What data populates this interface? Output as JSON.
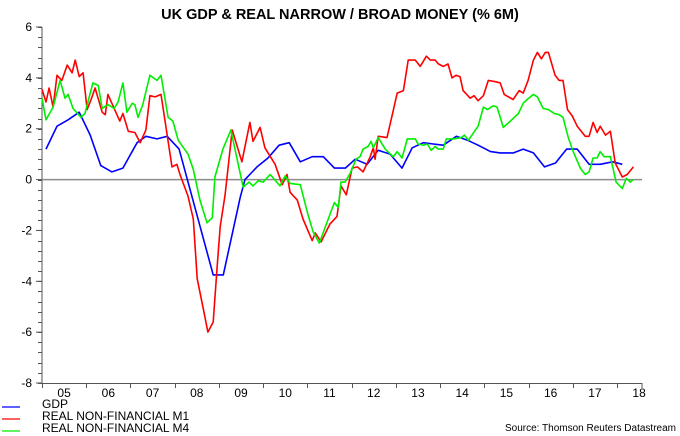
{
  "chart_data": {
    "type": "line",
    "title": "UK GDP & REAL NARROW / BROAD MONEY (% 6M)",
    "xlabel": "",
    "ylabel": "",
    "xlim": [
      2005,
      2018.55
    ],
    "ylim": [
      -8,
      6
    ],
    "y_ticks": [
      6,
      4,
      2,
      0,
      -2,
      -4,
      -6,
      -8
    ],
    "x_tick_labels": [
      "05",
      "06",
      "07",
      "08",
      "09",
      "10",
      "11",
      "12",
      "13",
      "14",
      "15",
      "16",
      "17",
      "18"
    ],
    "zero_line": true,
    "grid": false,
    "legend_position": "bottom-left",
    "source": "Source: Thomson Reuters Datastream",
    "series": [
      {
        "name": "GDP",
        "color": "#0000ff",
        "points": [
          [
            2005.09,
            1.2
          ],
          [
            2005.34,
            2.1
          ],
          [
            2005.59,
            2.35
          ],
          [
            2005.84,
            2.65
          ],
          [
            2006.09,
            1.75
          ],
          [
            2006.33,
            0.55
          ],
          [
            2006.58,
            0.3
          ],
          [
            2006.83,
            0.45
          ],
          [
            2007.15,
            1.45
          ],
          [
            2007.35,
            1.7
          ],
          [
            2007.6,
            1.6
          ],
          [
            2007.83,
            1.7
          ],
          [
            2008.1,
            1.2
          ],
          [
            2008.87,
            -3.75
          ],
          [
            2009.1,
            -3.75
          ],
          [
            2009.48,
            -0.7
          ],
          [
            2009.59,
            0
          ],
          [
            2009.86,
            0.5
          ],
          [
            2010.11,
            0.85
          ],
          [
            2010.36,
            1.35
          ],
          [
            2010.59,
            1.45
          ],
          [
            2010.84,
            0.7
          ],
          [
            2011.11,
            0.9
          ],
          [
            2011.36,
            0.9
          ],
          [
            2011.61,
            0.45
          ],
          [
            2011.86,
            0.45
          ],
          [
            2012.08,
            0.8
          ],
          [
            2012.35,
            0.6
          ],
          [
            2012.6,
            1.15
          ],
          [
            2012.87,
            1.0
          ],
          [
            2013.14,
            0.45
          ],
          [
            2013.37,
            1.25
          ],
          [
            2013.62,
            1.45
          ],
          [
            2013.85,
            1.4
          ],
          [
            2014.07,
            1.35
          ],
          [
            2014.37,
            1.7
          ],
          [
            2014.62,
            1.55
          ],
          [
            2014.86,
            1.35
          ],
          [
            2015.14,
            1.1
          ],
          [
            2015.36,
            1.05
          ],
          [
            2015.66,
            1.05
          ],
          [
            2015.88,
            1.2
          ],
          [
            2016.11,
            1.05
          ],
          [
            2016.36,
            0.5
          ],
          [
            2016.61,
            0.65
          ],
          [
            2016.86,
            1.2
          ],
          [
            2017.1,
            1.2
          ],
          [
            2017.37,
            0.6
          ],
          [
            2017.62,
            0.6
          ],
          [
            2017.9,
            0.7
          ],
          [
            2018.12,
            0.6
          ]
        ]
      },
      {
        "name": "REAL NON-FINANCIAL M1",
        "color": "#ff0000",
        "points": [
          [
            2005.0,
            3.55
          ],
          [
            2005.09,
            3.05
          ],
          [
            2005.16,
            3.6
          ],
          [
            2005.25,
            2.85
          ],
          [
            2005.34,
            4.1
          ],
          [
            2005.45,
            3.9
          ],
          [
            2005.57,
            4.5
          ],
          [
            2005.68,
            4.2
          ],
          [
            2005.75,
            4.7
          ],
          [
            2005.84,
            4.05
          ],
          [
            2005.93,
            4.2
          ],
          [
            2006.02,
            2.75
          ],
          [
            2006.11,
            3.15
          ],
          [
            2006.2,
            3.6
          ],
          [
            2006.36,
            2.65
          ],
          [
            2006.43,
            2.55
          ],
          [
            2006.49,
            3.35
          ],
          [
            2006.76,
            2.3
          ],
          [
            2006.83,
            2.6
          ],
          [
            2006.95,
            1.9
          ],
          [
            2007.1,
            1.85
          ],
          [
            2007.22,
            1.45
          ],
          [
            2007.35,
            1.95
          ],
          [
            2007.44,
            3.3
          ],
          [
            2007.56,
            3.25
          ],
          [
            2007.69,
            3.35
          ],
          [
            2007.94,
            0.5
          ],
          [
            2008.05,
            0.6
          ],
          [
            2008.12,
            0.2
          ],
          [
            2008.3,
            -0.65
          ],
          [
            2008.42,
            -1.55
          ],
          [
            2008.51,
            -3.9
          ],
          [
            2008.66,
            -5.2
          ],
          [
            2008.75,
            -6.0
          ],
          [
            2008.87,
            -5.6
          ],
          [
            2008.96,
            -3.4
          ],
          [
            2009.03,
            -1.85
          ],
          [
            2009.14,
            -0.6
          ],
          [
            2009.3,
            1.95
          ],
          [
            2009.52,
            0.7
          ],
          [
            2009.7,
            2.25
          ],
          [
            2009.77,
            1.5
          ],
          [
            2009.93,
            2.05
          ],
          [
            2010.04,
            1.25
          ],
          [
            2010.27,
            0.6
          ],
          [
            2010.43,
            -0.2
          ],
          [
            2010.54,
            0.2
          ],
          [
            2010.61,
            -0.5
          ],
          [
            2010.77,
            -0.8
          ],
          [
            2010.9,
            -1.55
          ],
          [
            2011.11,
            -2.4
          ],
          [
            2011.18,
            -2.1
          ],
          [
            2011.31,
            -2.45
          ],
          [
            2011.51,
            -1.75
          ],
          [
            2011.67,
            -1.45
          ],
          [
            2011.76,
            -0.25
          ],
          [
            2011.88,
            -0.6
          ],
          [
            2012.01,
            0.45
          ],
          [
            2012.13,
            0.5
          ],
          [
            2012.26,
            0.3
          ],
          [
            2012.42,
            0.9
          ],
          [
            2012.49,
            1.25
          ],
          [
            2012.53,
            0.8
          ],
          [
            2012.6,
            1.7
          ],
          [
            2012.8,
            1.65
          ],
          [
            2012.92,
            2.55
          ],
          [
            2013.03,
            3.4
          ],
          [
            2013.17,
            3.5
          ],
          [
            2013.28,
            4.7
          ],
          [
            2013.44,
            4.7
          ],
          [
            2013.55,
            4.45
          ],
          [
            2013.69,
            4.85
          ],
          [
            2013.78,
            4.7
          ],
          [
            2013.89,
            4.7
          ],
          [
            2013.96,
            4.55
          ],
          [
            2014.07,
            4.45
          ],
          [
            2014.18,
            4.55
          ],
          [
            2014.27,
            4.0
          ],
          [
            2014.36,
            4.1
          ],
          [
            2014.45,
            4.05
          ],
          [
            2014.52,
            3.5
          ],
          [
            2014.68,
            3.2
          ],
          [
            2014.77,
            3.3
          ],
          [
            2014.86,
            3.1
          ],
          [
            2014.98,
            3.3
          ],
          [
            2015.09,
            3.9
          ],
          [
            2015.25,
            3.85
          ],
          [
            2015.36,
            3.8
          ],
          [
            2015.45,
            3.35
          ],
          [
            2015.65,
            3.15
          ],
          [
            2015.79,
            3.5
          ],
          [
            2015.88,
            3.4
          ],
          [
            2015.99,
            3.9
          ],
          [
            2016.11,
            4.7
          ],
          [
            2016.2,
            5.0
          ],
          [
            2016.29,
            4.75
          ],
          [
            2016.38,
            5.0
          ],
          [
            2016.45,
            5.0
          ],
          [
            2016.6,
            4.1
          ],
          [
            2016.69,
            3.9
          ],
          [
            2016.78,
            3.9
          ],
          [
            2016.88,
            2.75
          ],
          [
            2016.99,
            2.5
          ],
          [
            2017.1,
            2.1
          ],
          [
            2017.28,
            1.7
          ],
          [
            2017.37,
            1.7
          ],
          [
            2017.46,
            2.25
          ],
          [
            2017.55,
            1.85
          ],
          [
            2017.62,
            2.1
          ],
          [
            2017.74,
            1.75
          ],
          [
            2017.85,
            1.9
          ],
          [
            2017.96,
            0.65
          ],
          [
            2018.12,
            0.1
          ],
          [
            2018.23,
            0.2
          ],
          [
            2018.37,
            0.5
          ]
        ]
      },
      {
        "name": "REAL NON-FINANCIAL M4",
        "color": "#00ee00",
        "points": [
          [
            2005.0,
            3.2
          ],
          [
            2005.09,
            2.35
          ],
          [
            2005.25,
            2.85
          ],
          [
            2005.41,
            3.9
          ],
          [
            2005.52,
            3.2
          ],
          [
            2005.59,
            3.35
          ],
          [
            2005.7,
            2.8
          ],
          [
            2005.88,
            2.45
          ],
          [
            2005.97,
            2.6
          ],
          [
            2006.15,
            3.8
          ],
          [
            2006.27,
            3.7
          ],
          [
            2006.36,
            2.8
          ],
          [
            2006.49,
            2.95
          ],
          [
            2006.63,
            2.8
          ],
          [
            2006.72,
            3.05
          ],
          [
            2006.83,
            3.8
          ],
          [
            2006.92,
            2.65
          ],
          [
            2007.04,
            3.0
          ],
          [
            2007.1,
            2.95
          ],
          [
            2007.17,
            2.45
          ],
          [
            2007.28,
            2.95
          ],
          [
            2007.44,
            4.1
          ],
          [
            2007.6,
            3.9
          ],
          [
            2007.69,
            4.1
          ],
          [
            2007.85,
            2.45
          ],
          [
            2007.96,
            2.3
          ],
          [
            2008.08,
            1.55
          ],
          [
            2008.3,
            1.0
          ],
          [
            2008.42,
            0.4
          ],
          [
            2008.57,
            -0.8
          ],
          [
            2008.73,
            -1.7
          ],
          [
            2008.85,
            -1.5
          ],
          [
            2008.91,
            0.1
          ],
          [
            2009.09,
            1.2
          ],
          [
            2009.27,
            1.95
          ],
          [
            2009.41,
            0.8
          ],
          [
            2009.55,
            -0.3
          ],
          [
            2009.68,
            -0.1
          ],
          [
            2009.77,
            -0.25
          ],
          [
            2009.89,
            -0.05
          ],
          [
            2010.0,
            -0.1
          ],
          [
            2010.16,
            0.2
          ],
          [
            2010.38,
            -0.25
          ],
          [
            2010.5,
            0.15
          ],
          [
            2010.61,
            -0.15
          ],
          [
            2010.84,
            -0.2
          ],
          [
            2011.0,
            -1.3
          ],
          [
            2011.13,
            -2.05
          ],
          [
            2011.27,
            -2.5
          ],
          [
            2011.45,
            -1.65
          ],
          [
            2011.61,
            -0.9
          ],
          [
            2011.7,
            -1.1
          ],
          [
            2011.76,
            -0.1
          ],
          [
            2011.85,
            -0.1
          ],
          [
            2011.97,
            0.25
          ],
          [
            2012.1,
            0.8
          ],
          [
            2012.19,
            0.9
          ],
          [
            2012.26,
            1.2
          ],
          [
            2012.37,
            1.3
          ],
          [
            2012.44,
            1.5
          ],
          [
            2012.49,
            1.25
          ],
          [
            2012.6,
            1.65
          ],
          [
            2012.76,
            1.2
          ],
          [
            2012.94,
            0.9
          ],
          [
            2013.03,
            1.1
          ],
          [
            2013.14,
            0.85
          ],
          [
            2013.26,
            1.6
          ],
          [
            2013.44,
            1.6
          ],
          [
            2013.5,
            1.4
          ],
          [
            2013.62,
            1.35
          ],
          [
            2013.71,
            1.4
          ],
          [
            2013.8,
            1.15
          ],
          [
            2013.89,
            1.3
          ],
          [
            2013.96,
            1.2
          ],
          [
            2014.07,
            1.2
          ],
          [
            2014.14,
            1.6
          ],
          [
            2014.3,
            1.6
          ],
          [
            2014.48,
            1.65
          ],
          [
            2014.55,
            1.75
          ],
          [
            2014.64,
            1.55
          ],
          [
            2014.86,
            2.1
          ],
          [
            2014.98,
            2.85
          ],
          [
            2015.07,
            2.75
          ],
          [
            2015.2,
            2.9
          ],
          [
            2015.29,
            2.85
          ],
          [
            2015.43,
            2.05
          ],
          [
            2015.59,
            2.3
          ],
          [
            2015.77,
            2.6
          ],
          [
            2015.88,
            3.0
          ],
          [
            2015.97,
            3.15
          ],
          [
            2016.11,
            3.35
          ],
          [
            2016.2,
            3.25
          ],
          [
            2016.33,
            2.8
          ],
          [
            2016.45,
            2.75
          ],
          [
            2016.58,
            2.6
          ],
          [
            2016.69,
            2.55
          ],
          [
            2016.78,
            2.45
          ],
          [
            2016.9,
            1.65
          ],
          [
            2017.01,
            1.1
          ],
          [
            2017.17,
            0.45
          ],
          [
            2017.28,
            0.2
          ],
          [
            2017.37,
            0.3
          ],
          [
            2017.46,
            0.85
          ],
          [
            2017.55,
            0.85
          ],
          [
            2017.62,
            1.1
          ],
          [
            2017.71,
            0.9
          ],
          [
            2017.85,
            0.9
          ],
          [
            2017.98,
            -0.1
          ],
          [
            2018.12,
            -0.35
          ],
          [
            2018.21,
            0.05
          ],
          [
            2018.3,
            -0.1
          ],
          [
            2018.37,
            0
          ]
        ]
      }
    ]
  }
}
